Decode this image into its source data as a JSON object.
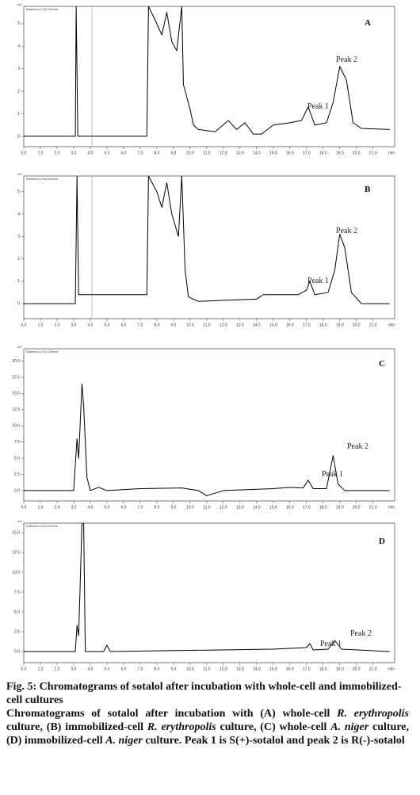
{
  "chart_data": [
    {
      "type": "line",
      "panel": "A",
      "detector": "Detector A Ch2 254nm",
      "ylabel": "mV",
      "x_unit": "min",
      "peak_labels": [
        "Peak 1",
        "Peak 2"
      ],
      "xlim": [
        0,
        22.3
      ],
      "ylim": [
        -0.46,
        5.77
      ],
      "yticks": [
        0,
        1,
        2,
        3,
        4,
        5
      ],
      "xticks": [
        {
          "value": 0,
          "label": "0.0"
        },
        {
          "value": 1,
          "label": "1.0"
        },
        {
          "value": 2,
          "label": "2.0"
        },
        {
          "value": 3,
          "label": "3.0"
        },
        {
          "value": 4,
          "label": "4.0"
        },
        {
          "value": 5,
          "label": "5.0"
        },
        {
          "value": 6,
          "label": "6.0"
        },
        {
          "value": 7,
          "label": "7.0"
        },
        {
          "value": 8,
          "label": "8.0"
        },
        {
          "value": 9,
          "label": "9.0"
        },
        {
          "value": 10,
          "label": "10.0"
        },
        {
          "value": 11,
          "label": "11.0"
        },
        {
          "value": 12,
          "label": "12.0"
        },
        {
          "value": 13,
          "label": "13.0"
        },
        {
          "value": 14,
          "label": "14.0"
        },
        {
          "value": 15,
          "label": "15.0"
        },
        {
          "value": 16,
          "label": "16.0"
        },
        {
          "value": 17,
          "label": "17.0"
        },
        {
          "value": 18,
          "label": "18.0"
        },
        {
          "value": 19,
          "label": "19.0"
        },
        {
          "value": 20,
          "label": "20.0"
        },
        {
          "value": 21,
          "label": "21.0"
        }
      ],
      "x": [
        0,
        3.1,
        3.15,
        3.25,
        7.4,
        7.5,
        8.0,
        8.3,
        8.6,
        8.9,
        9.2,
        9.5,
        9.6,
        10.0,
        10.2,
        10.5,
        11.5,
        12.3,
        12.8,
        13.3,
        13.8,
        14.3,
        15.0,
        16.0,
        16.7,
        17.1,
        17.5,
        18.2,
        18.6,
        19.0,
        19.4,
        19.8,
        20.3,
        22.0
      ],
      "series": [
        {
          "color": "#000000",
          "values": [
            0,
            0,
            5.77,
            0,
            0,
            5.77,
            5.0,
            4.5,
            5.5,
            4.2,
            3.8,
            5.77,
            2.3,
            1.2,
            0.5,
            0.3,
            0.2,
            0.7,
            0.3,
            0.6,
            0.1,
            0.1,
            0.5,
            0.6,
            0.7,
            1.3,
            0.5,
            0.6,
            1.5,
            3.1,
            2.5,
            0.6,
            0.35,
            0.3
          ]
        }
      ]
    },
    {
      "type": "line",
      "panel": "B",
      "detector": "Detector A Ch2 254nm",
      "ylabel": "mV",
      "x_unit": "min",
      "peak_labels": [
        "Peak 1",
        "Peak 2"
      ],
      "xlim": [
        0,
        22.3
      ],
      "ylim": [
        -0.67,
        5.7
      ],
      "yticks": [
        0,
        1,
        2,
        3,
        4,
        5
      ],
      "xticks": [
        {
          "value": 0,
          "label": "0.0"
        },
        {
          "value": 1,
          "label": "1.0"
        },
        {
          "value": 2,
          "label": "2.0"
        },
        {
          "value": 3,
          "label": "3.0"
        },
        {
          "value": 4,
          "label": "4.0"
        },
        {
          "value": 5,
          "label": "5.0"
        },
        {
          "value": 6,
          "label": "6.0"
        },
        {
          "value": 7,
          "label": "7.0"
        },
        {
          "value": 8,
          "label": "8.0"
        },
        {
          "value": 9,
          "label": "9.0"
        },
        {
          "value": 10,
          "label": "10.0"
        },
        {
          "value": 11,
          "label": "11.0"
        },
        {
          "value": 12,
          "label": "12.0"
        },
        {
          "value": 13,
          "label": "13.0"
        },
        {
          "value": 14,
          "label": "14.0"
        },
        {
          "value": 15,
          "label": "15.0"
        },
        {
          "value": 16,
          "label": "16.0"
        },
        {
          "value": 17,
          "label": "17.0"
        },
        {
          "value": 18,
          "label": "18.0"
        },
        {
          "value": 19,
          "label": "19.0"
        },
        {
          "value": 20,
          "label": "20.0"
        },
        {
          "value": 21,
          "label": "21.0"
        }
      ],
      "x": [
        0,
        3.1,
        3.2,
        3.3,
        7.4,
        7.5,
        8.0,
        8.3,
        8.6,
        8.9,
        9.3,
        9.5,
        9.7,
        9.9,
        10.5,
        12.0,
        14.0,
        14.4,
        16.5,
        17.0,
        17.2,
        17.5,
        18.3,
        18.7,
        19.0,
        19.3,
        19.7,
        20.3,
        22.0
      ],
      "series": [
        {
          "color": "#000000",
          "values": [
            0,
            0,
            5.7,
            0.4,
            0.4,
            5.7,
            5.0,
            4.3,
            5.4,
            4.0,
            3.0,
            5.7,
            1.5,
            0.3,
            0.1,
            0.15,
            0.2,
            0.4,
            0.4,
            0.6,
            1.0,
            0.4,
            0.5,
            1.5,
            3.1,
            2.5,
            0.5,
            0,
            0
          ]
        }
      ]
    },
    {
      "type": "line",
      "panel": "C",
      "detector": "Detector A Ch2 254nm",
      "ylabel": "mV",
      "x_unit": "min",
      "peak_labels": [
        "Peak 1",
        "Peak 2"
      ],
      "xlim": [
        0,
        22.3
      ],
      "ylim": [
        -1.6,
        21.9
      ],
      "yticks": [
        {
          "value": 0,
          "label": "0.0"
        },
        {
          "value": 2.5,
          "label": "2.5"
        },
        {
          "value": 5,
          "label": "5.0"
        },
        {
          "value": 7.5,
          "label": "7.5"
        },
        {
          "value": 10,
          "label": "10.0"
        },
        {
          "value": 12.5,
          "label": "12.5"
        },
        {
          "value": 15,
          "label": "15.0"
        },
        {
          "value": 17.5,
          "label": "17.5"
        },
        {
          "value": 20,
          "label": "20.0"
        }
      ],
      "xticks": [
        {
          "value": 0,
          "label": "0.0"
        },
        {
          "value": 1,
          "label": "1.0"
        },
        {
          "value": 2,
          "label": "2.0"
        },
        {
          "value": 3,
          "label": "3.0"
        },
        {
          "value": 4,
          "label": "4.0"
        },
        {
          "value": 5,
          "label": "5.0"
        },
        {
          "value": 6,
          "label": "6.0"
        },
        {
          "value": 7,
          "label": "7.0"
        },
        {
          "value": 8,
          "label": "8.0"
        },
        {
          "value": 9,
          "label": "9.0"
        },
        {
          "value": 10,
          "label": "10.0"
        },
        {
          "value": 11,
          "label": "11.0"
        },
        {
          "value": 12,
          "label": "12.0"
        },
        {
          "value": 13,
          "label": "13.0"
        },
        {
          "value": 14,
          "label": "14.0"
        },
        {
          "value": 15,
          "label": "15.0"
        },
        {
          "value": 16,
          "label": "16.0"
        },
        {
          "value": 17,
          "label": "17.0"
        },
        {
          "value": 18,
          "label": "18.0"
        },
        {
          "value": 19,
          "label": "19.0"
        },
        {
          "value": 20,
          "label": "20.0"
        },
        {
          "value": 21,
          "label": "21.0"
        }
      ],
      "x": [
        0,
        3.0,
        3.2,
        3.3,
        3.5,
        3.6,
        3.8,
        4.0,
        4.5,
        5.0,
        7.0,
        9.5,
        10.5,
        11.0,
        12.0,
        15.0,
        16.0,
        16.8,
        17.1,
        17.4,
        18.2,
        18.6,
        18.9,
        19.3,
        22.0
      ],
      "series": [
        {
          "color": "#000000",
          "values": [
            0,
            0,
            8,
            5,
            16.5,
            13,
            2,
            0,
            0.5,
            0,
            0.3,
            0.4,
            0,
            -0.8,
            0,
            0.3,
            0.5,
            0.4,
            1.6,
            0.3,
            0.3,
            5.4,
            1,
            0,
            0
          ]
        }
      ]
    },
    {
      "type": "line",
      "panel": "D",
      "detector": "Detector A Ch2 254nm",
      "ylabel": "mV",
      "x_unit": "min",
      "peak_labels": [
        "Peak 1",
        "Peak 2"
      ],
      "xlim": [
        0,
        22.3
      ],
      "ylim": [
        -1.4,
        16.2
      ],
      "yticks": [
        {
          "value": 0,
          "label": "0.0"
        },
        {
          "value": 2.5,
          "label": "2.5"
        },
        {
          "value": 5,
          "label": "5.0"
        },
        {
          "value": 7.5,
          "label": "7.5"
        },
        {
          "value": 10,
          "label": "10.0"
        },
        {
          "value": 12.5,
          "label": "12.5"
        },
        {
          "value": 15,
          "label": "15.0"
        }
      ],
      "xticks": [
        {
          "value": 0,
          "label": "0.0"
        },
        {
          "value": 1,
          "label": "1.0"
        },
        {
          "value": 2,
          "label": "2.0"
        },
        {
          "value": 3,
          "label": "3.0"
        },
        {
          "value": 4,
          "label": "4.0"
        },
        {
          "value": 5,
          "label": "5.0"
        },
        {
          "value": 6,
          "label": "6.0"
        },
        {
          "value": 7,
          "label": "7.0"
        },
        {
          "value": 8,
          "label": "8.0"
        },
        {
          "value": 9,
          "label": "9.0"
        },
        {
          "value": 10,
          "label": "10.0"
        },
        {
          "value": 11,
          "label": "11.0"
        },
        {
          "value": 12,
          "label": "12.0"
        },
        {
          "value": 13,
          "label": "13.0"
        },
        {
          "value": 14,
          "label": "14.0"
        },
        {
          "value": 15,
          "label": "15.0"
        },
        {
          "value": 16,
          "label": "16.0"
        },
        {
          "value": 17,
          "label": "17.0"
        },
        {
          "value": 18,
          "label": "18.0"
        },
        {
          "value": 19,
          "label": "19.0"
        },
        {
          "value": 20,
          "label": "20.0"
        },
        {
          "value": 21,
          "label": "21.0"
        }
      ],
      "x": [
        0,
        3.1,
        3.2,
        3.3,
        3.5,
        3.6,
        3.7,
        4.8,
        5.0,
        5.2,
        15.0,
        17.0,
        17.2,
        17.4,
        18.3,
        18.7,
        19.1,
        22.0
      ],
      "series": [
        {
          "color": "#000000",
          "values": [
            0,
            0,
            3.3,
            2,
            16.2,
            16.2,
            0,
            0,
            0.8,
            0,
            0.3,
            0.5,
            1.0,
            0.2,
            0.3,
            1.4,
            0.3,
            0
          ]
        }
      ]
    }
  ],
  "caption": {
    "title": "Fig. 5: Chromatograms of sotalol after incubation with whole-cell and immobilized-cell cultures",
    "body": [
      "Chromatograms of sotalol after incubation with (A) whole-cell ",
      "R. erythropolis",
      " culture, (B) immobilized-cell ",
      "R. erythropolis",
      " culture, (C) whole-cell ",
      "A. niger",
      " culture, (D) immobilized-cell ",
      "A. niger",
      " culture. Peak 1 is S(+)-sotalol and peak 2 is R(-)-sotalol"
    ]
  }
}
